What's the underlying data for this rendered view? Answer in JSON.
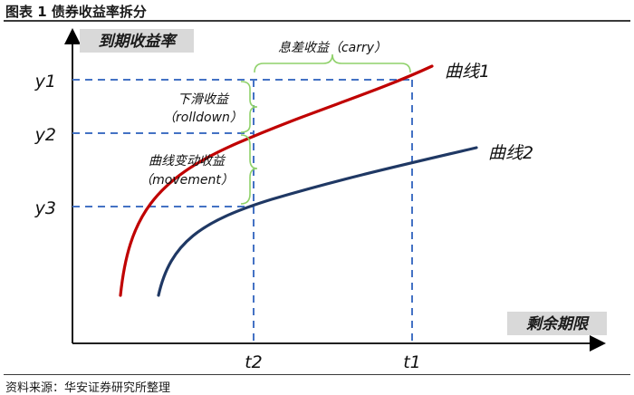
{
  "figure_title": "图表 1 债券收益率拆分",
  "source_note": "资料来源：华安证券研究所整理",
  "axes": {
    "y_label": "到期收益率",
    "x_label": "剩余期限",
    "y_ticks": [
      "y1",
      "y2",
      "y3"
    ],
    "x_ticks": [
      "t2",
      "t1"
    ]
  },
  "curves": {
    "curve1_label": "曲线1",
    "curve2_label": "曲线2"
  },
  "annotations": {
    "carry": "息差收益（carry）",
    "rolldown_line1": "下滑收益",
    "rolldown_line2": "（rolldown）",
    "movement_line1": "曲线变动收益",
    "movement_line2": "（movement）"
  },
  "colors": {
    "curve1": "#c00000",
    "curve2": "#1f3864",
    "dashed": "#4472c4",
    "brace": "#8fd16a",
    "axis_label_bg": "#d9d9d9"
  }
}
